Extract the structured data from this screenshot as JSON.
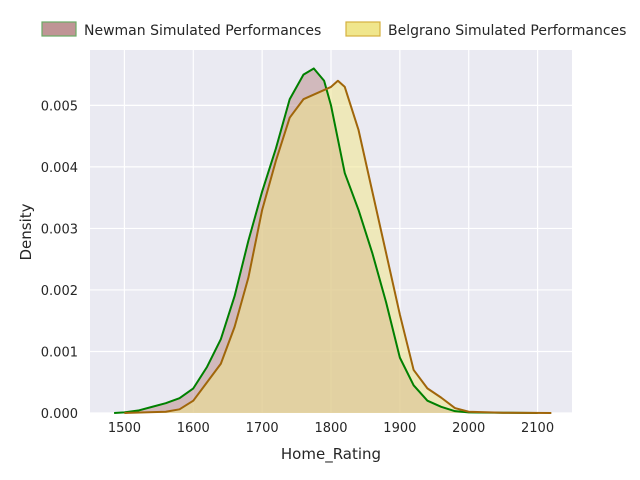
{
  "chart_data": {
    "type": "area",
    "xlabel": "Home_Rating",
    "ylabel": "Density",
    "xlim": [
      1450,
      2150
    ],
    "ylim": [
      0,
      0.0059
    ],
    "x_ticks": [
      1500,
      1600,
      1700,
      1800,
      1900,
      2000,
      2100
    ],
    "x_tick_labels": [
      "1500",
      "1600",
      "1700",
      "1800",
      "1900",
      "2000",
      "2100"
    ],
    "y_ticks": [
      0,
      0.001,
      0.002,
      0.003,
      0.004,
      0.005
    ],
    "y_tick_labels": [
      "0.000",
      "0.001",
      "0.002",
      "0.003",
      "0.004",
      "0.005"
    ],
    "grid": true,
    "legend_placement": "top-center, outside plot",
    "background_color": "#EAEAF2",
    "series": [
      {
        "name": "Newman Simulated Performances",
        "line_color": "#008000",
        "fill_color": "#BC8F8F",
        "legend_edge_color": "#6AAA64",
        "points": [
          [
            1485,
            0
          ],
          [
            1500,
            1e-05
          ],
          [
            1520,
            4e-05
          ],
          [
            1540,
            0.0001
          ],
          [
            1560,
            0.00016
          ],
          [
            1580,
            0.00024
          ],
          [
            1600,
            0.0004
          ],
          [
            1620,
            0.00075
          ],
          [
            1640,
            0.0012
          ],
          [
            1660,
            0.0019
          ],
          [
            1680,
            0.0028
          ],
          [
            1700,
            0.0036
          ],
          [
            1720,
            0.0043
          ],
          [
            1740,
            0.0051
          ],
          [
            1760,
            0.0055
          ],
          [
            1775,
            0.0056
          ],
          [
            1790,
            0.0054
          ],
          [
            1800,
            0.005
          ],
          [
            1820,
            0.0039
          ],
          [
            1840,
            0.0033
          ],
          [
            1860,
            0.0026
          ],
          [
            1880,
            0.0018
          ],
          [
            1900,
            0.0009
          ],
          [
            1920,
            0.00045
          ],
          [
            1940,
            0.0002
          ],
          [
            1960,
            0.0001
          ],
          [
            1980,
            3e-05
          ],
          [
            2000,
            1e-05
          ],
          [
            2050,
            5e-06
          ],
          [
            2100,
            0
          ]
        ]
      },
      {
        "name": "Belgrano Simulated Performances",
        "line_color": "#A0660A",
        "fill_color": "#F0E68C",
        "legend_edge_color": "#D4B040",
        "points": [
          [
            1500,
            0
          ],
          [
            1560,
            2e-05
          ],
          [
            1580,
            6e-05
          ],
          [
            1600,
            0.0002
          ],
          [
            1620,
            0.0005
          ],
          [
            1640,
            0.0008
          ],
          [
            1660,
            0.0014
          ],
          [
            1680,
            0.0022
          ],
          [
            1700,
            0.0033
          ],
          [
            1720,
            0.0041
          ],
          [
            1740,
            0.0048
          ],
          [
            1760,
            0.0051
          ],
          [
            1780,
            0.0052
          ],
          [
            1800,
            0.0053
          ],
          [
            1810,
            0.0054
          ],
          [
            1820,
            0.0053
          ],
          [
            1840,
            0.0046
          ],
          [
            1860,
            0.0036
          ],
          [
            1880,
            0.0026
          ],
          [
            1900,
            0.0016
          ],
          [
            1920,
            0.0007
          ],
          [
            1940,
            0.0004
          ],
          [
            1960,
            0.00025
          ],
          [
            1980,
            8e-05
          ],
          [
            2000,
            2e-05
          ],
          [
            2050,
            4e-06
          ],
          [
            2120,
            0
          ]
        ]
      }
    ]
  }
}
